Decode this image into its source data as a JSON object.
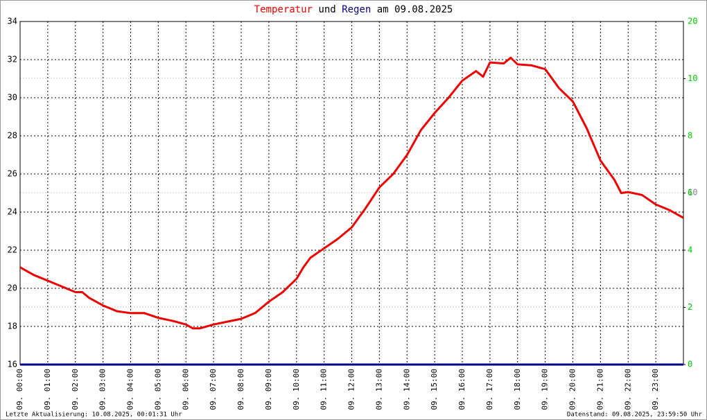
{
  "chart_data": {
    "type": "line",
    "title_parts": [
      {
        "text": "Temperatur",
        "color": "#ee0000"
      },
      {
        "text": "und",
        "color": "#000000"
      },
      {
        "text": "Regen",
        "color": "#000080"
      },
      {
        "text": "am 09.08.2025",
        "color": "#000000"
      }
    ],
    "x": [
      0,
      0.5,
      1,
      1.5,
      2,
      2.25,
      2.5,
      3,
      3.5,
      4,
      4.5,
      5,
      5.5,
      6,
      6.25,
      6.5,
      7,
      7.5,
      8,
      8.5,
      9,
      9.5,
      10,
      10.25,
      10.5,
      11,
      11.5,
      12,
      12.5,
      13,
      13.5,
      14,
      14.5,
      15,
      15.5,
      16,
      16.5,
      16.75,
      17,
      17.5,
      17.75,
      18,
      18.5,
      19,
      19.5,
      20,
      20.5,
      21,
      21.5,
      21.75,
      22,
      22.5,
      23,
      23.5,
      24
    ],
    "series": [
      {
        "name": "Temperatur",
        "color": "#ee0000",
        "values": [
          21.1,
          20.7,
          20.4,
          20.1,
          19.8,
          19.8,
          19.5,
          19.1,
          18.8,
          18.7,
          18.7,
          18.45,
          18.3,
          18.1,
          17.9,
          17.9,
          18.1,
          18.25,
          18.4,
          18.7,
          19.3,
          19.8,
          20.5,
          21.1,
          21.6,
          22.1,
          22.6,
          23.2,
          24.2,
          25.3,
          26.0,
          27.0,
          28.3,
          29.2,
          30.0,
          30.9,
          31.4,
          31.1,
          31.85,
          31.8,
          32.1,
          31.75,
          31.7,
          31.5,
          30.5,
          29.8,
          28.4,
          26.7,
          25.7,
          25.0,
          25.05,
          24.9,
          24.4,
          24.1,
          23.7
        ]
      },
      {
        "name": "Regen",
        "color": "#000080",
        "axis": "y2",
        "values": [
          0,
          0,
          0,
          0,
          0,
          0,
          0,
          0,
          0,
          0,
          0,
          0,
          0,
          0,
          0,
          0,
          0,
          0,
          0,
          0,
          0,
          0,
          0,
          0,
          0,
          0,
          0,
          0,
          0,
          0,
          0,
          0,
          0,
          0,
          0,
          0,
          0,
          0,
          0,
          0,
          0,
          0,
          0,
          0,
          0,
          0,
          0,
          0,
          0,
          0,
          0,
          0,
          0,
          0,
          0
        ]
      }
    ],
    "xlim": [
      0,
      24
    ],
    "xticks": [
      {
        "value": 0,
        "label": "09. 00:00"
      },
      {
        "value": 1,
        "label": "09. 01:00"
      },
      {
        "value": 2,
        "label": "09. 02:00"
      },
      {
        "value": 3,
        "label": "09. 03:00"
      },
      {
        "value": 4,
        "label": "09. 04:00"
      },
      {
        "value": 5,
        "label": "09. 05:00"
      },
      {
        "value": 6,
        "label": "09. 06:00"
      },
      {
        "value": 7,
        "label": "09. 07:00"
      },
      {
        "value": 8,
        "label": "09. 08:00"
      },
      {
        "value": 9,
        "label": "09. 09:00"
      },
      {
        "value": 10,
        "label": "09. 10:00"
      },
      {
        "value": 11,
        "label": "09. 11:00"
      },
      {
        "value": 12,
        "label": "09. 12:00"
      },
      {
        "value": 13,
        "label": "09. 13:00"
      },
      {
        "value": 14,
        "label": "09. 14:00"
      },
      {
        "value": 15,
        "label": "09. 15:00"
      },
      {
        "value": 16,
        "label": "09. 16:00"
      },
      {
        "value": 17,
        "label": "09. 17:00"
      },
      {
        "value": 18,
        "label": "09. 18:00"
      },
      {
        "value": 19,
        "label": "09. 19:00"
      },
      {
        "value": 20,
        "label": "09. 20:00"
      },
      {
        "value": 21,
        "label": "09. 21:00"
      },
      {
        "value": 22,
        "label": "09. 22:00"
      },
      {
        "value": 23,
        "label": "09. 23:00"
      }
    ],
    "ylim": [
      16,
      34
    ],
    "yticks": [
      16,
      18,
      20,
      22,
      24,
      26,
      28,
      30,
      32,
      34
    ],
    "y2lim": [
      0,
      12
    ],
    "y2ticks": [
      0,
      2,
      4,
      6,
      8,
      10
    ],
    "y2_top_label": "20",
    "y2_extra_label": "10",
    "grid": true,
    "footer_left": "Letzte Aktualisierung: 10.08.2025, 00:01:31 Uhr",
    "footer_right": "Datenstand: 09.08.2025, 23:59:50 Uhr"
  }
}
